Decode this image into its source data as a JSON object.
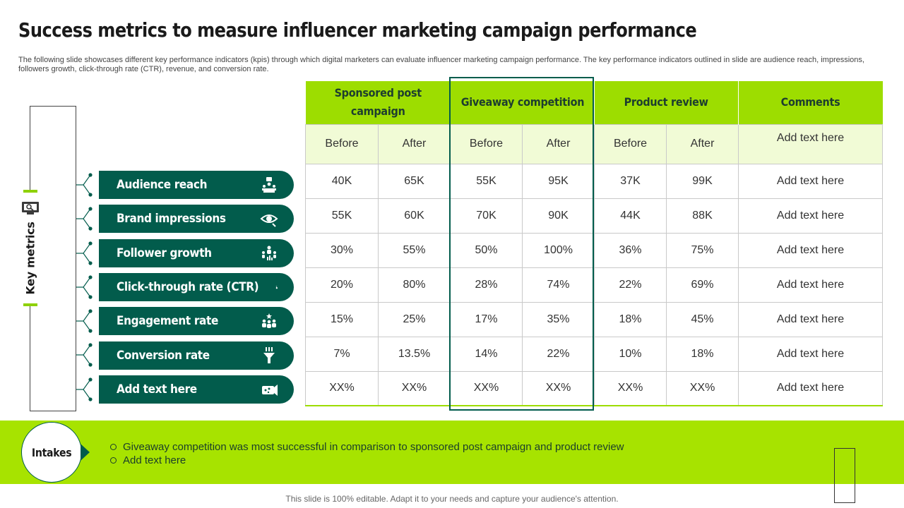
{
  "title": "Success metrics to measure influencer marketing campaign performance",
  "subtitle": "The following slide showcases different key performance indicators (kpis) through which digital marketers can evaluate influencer marketing campaign performance. The key performance indicators outlined in slide are audience reach, impressions, followers growth, click-through rate (CTR), revenue, and conversion rate.",
  "key_metrics_label": "Key metrics",
  "metrics": [
    {
      "label": "Audience reach",
      "icon": "audience-icon"
    },
    {
      "label": "Brand impressions",
      "icon": "eye-icon"
    },
    {
      "label": "Follower growth",
      "icon": "follower-growth-icon"
    },
    {
      "label": "Click-through rate (CTR)",
      "icon": "click-icon"
    },
    {
      "label": "Engagement rate",
      "icon": "engagement-icon"
    },
    {
      "label": "Conversion rate",
      "icon": "funnel-icon"
    },
    {
      "label": "Add text here",
      "icon": "megaphone-icon"
    }
  ],
  "table": {
    "groups": [
      "Sponsored post campaign",
      "Giveaway competition",
      "Product review"
    ],
    "comments_header": "Comments",
    "before_label": "Before",
    "after_label": "After",
    "sub_comment": "Add text here",
    "rows": [
      {
        "values": [
          "40K",
          "65K",
          "55K",
          "95K",
          "37K",
          "99K"
        ],
        "comment": "Add text here"
      },
      {
        "values": [
          "55K",
          "60K",
          "70K",
          "90K",
          "44K",
          "88K"
        ],
        "comment": "Add text here"
      },
      {
        "values": [
          "30%",
          "55%",
          "50%",
          "100%",
          "36%",
          "75%"
        ],
        "comment": "Add text here"
      },
      {
        "values": [
          "20%",
          "80%",
          "28%",
          "74%",
          "22%",
          "69%"
        ],
        "comment": "Add text here"
      },
      {
        "values": [
          "15%",
          "25%",
          "17%",
          "35%",
          "18%",
          "45%"
        ],
        "comment": "Add text here"
      },
      {
        "values": [
          "7%",
          "13.5%",
          "14%",
          "22%",
          "10%",
          "18%"
        ],
        "comment": "Add text here"
      },
      {
        "values": [
          "XX%",
          "XX%",
          "XX%",
          "XX%",
          "XX%",
          "XX%"
        ],
        "comment": "Add text here"
      }
    ]
  },
  "intakes": {
    "label": "Intakes",
    "items": [
      "Giveaway competition was most successful in comparison to sponsored post campaign and product review",
      "Add text here"
    ]
  },
  "footer": "This slide is 100% editable. Adapt it to your needs and capture your audience's attention.",
  "colors": {
    "accent_green": "#9ddd00",
    "dark_teal": "#025c4c",
    "band_green": "#a7e300"
  }
}
